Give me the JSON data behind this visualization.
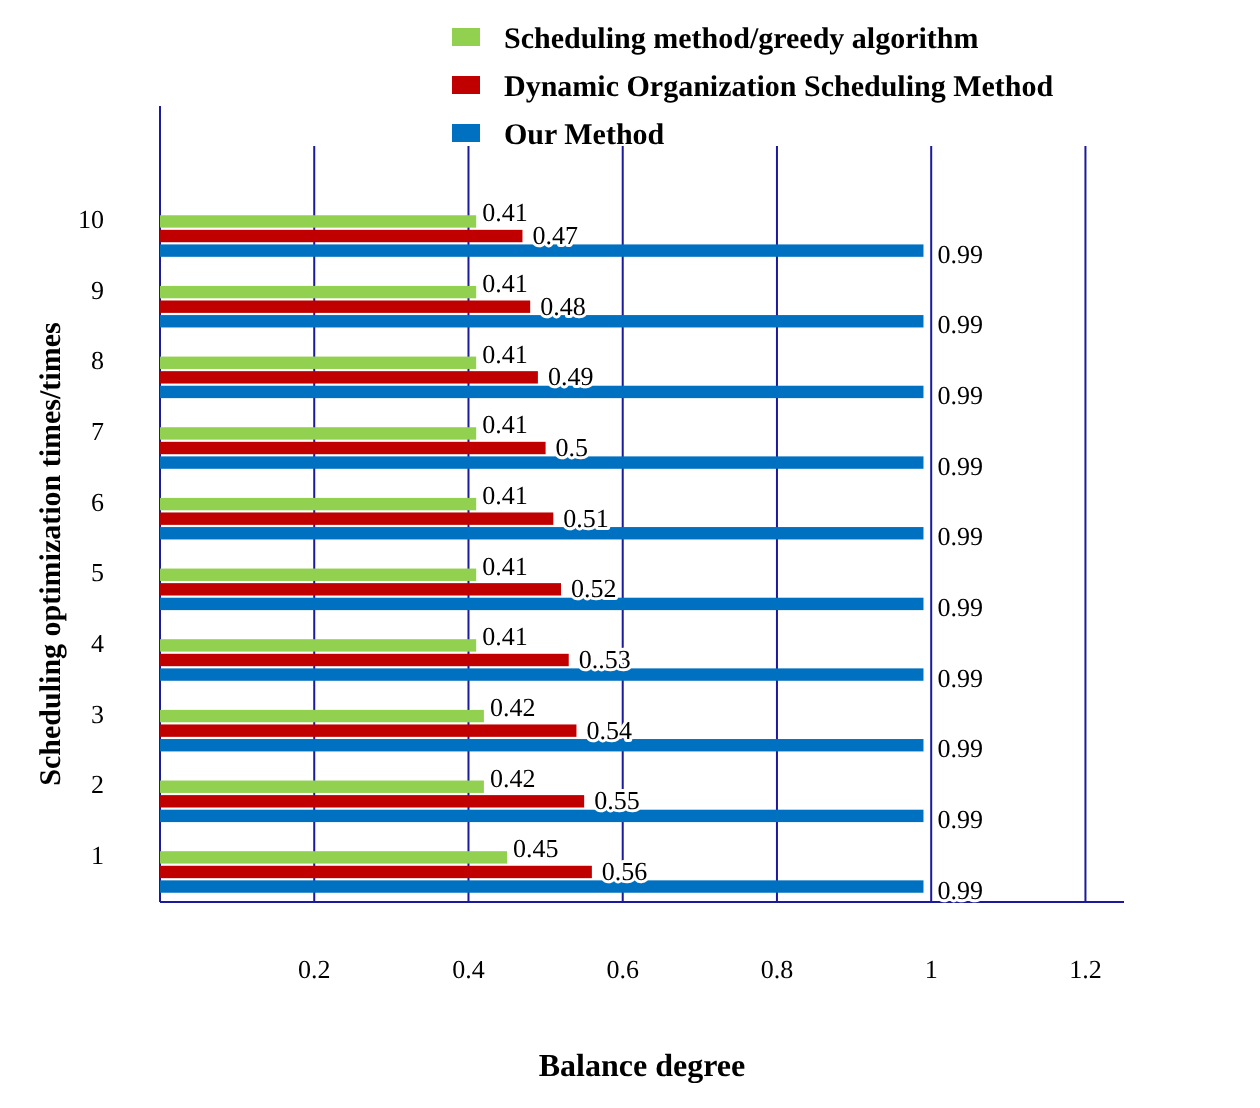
{
  "chart_data": {
    "type": "bar",
    "orientation": "horizontal",
    "xlabel": "Balance degree",
    "ylabel": "Scheduling optimization times/times",
    "categories": [
      "10",
      "9",
      "8",
      "7",
      "6",
      "5",
      "4",
      "3",
      "2",
      "1"
    ],
    "series": [
      {
        "name": "Scheduling method/greedy algorithm",
        "color": "#92d050",
        "values": [
          0.41,
          0.41,
          0.41,
          0.41,
          0.41,
          0.41,
          0.41,
          0.42,
          0.42,
          0.45
        ],
        "value_labels": [
          "0.41",
          "0.41",
          "0.41",
          "0.41",
          "0.41",
          "0.41",
          "0.41",
          "0.42",
          "0.42",
          "0.45"
        ]
      },
      {
        "name": "Dynamic Organization Scheduling Method",
        "color": "#c00000",
        "values": [
          0.47,
          0.48,
          0.49,
          0.5,
          0.51,
          0.52,
          0.53,
          0.54,
          0.55,
          0.56
        ],
        "value_labels": [
          "0.47",
          "0.48",
          "0.49",
          "0.5",
          "0.51",
          "0.52",
          "0..53",
          "0.54",
          "0.55",
          "0.56"
        ]
      },
      {
        "name": "Our Method",
        "color": "#0070c0",
        "values": [
          0.99,
          0.99,
          0.99,
          0.99,
          0.99,
          0.99,
          0.99,
          0.99,
          0.99,
          0.99
        ],
        "value_labels": [
          "0.99",
          "0.99",
          "0.99",
          "0.99",
          "0.99",
          "0.99",
          "0.99",
          "0.99",
          "0.99",
          "0.99"
        ]
      }
    ],
    "xlim": [
      0,
      1.25
    ],
    "xticks": [
      0.2,
      0.4,
      0.6,
      0.8,
      1,
      1.2
    ],
    "grid": "x",
    "legend": "top"
  }
}
